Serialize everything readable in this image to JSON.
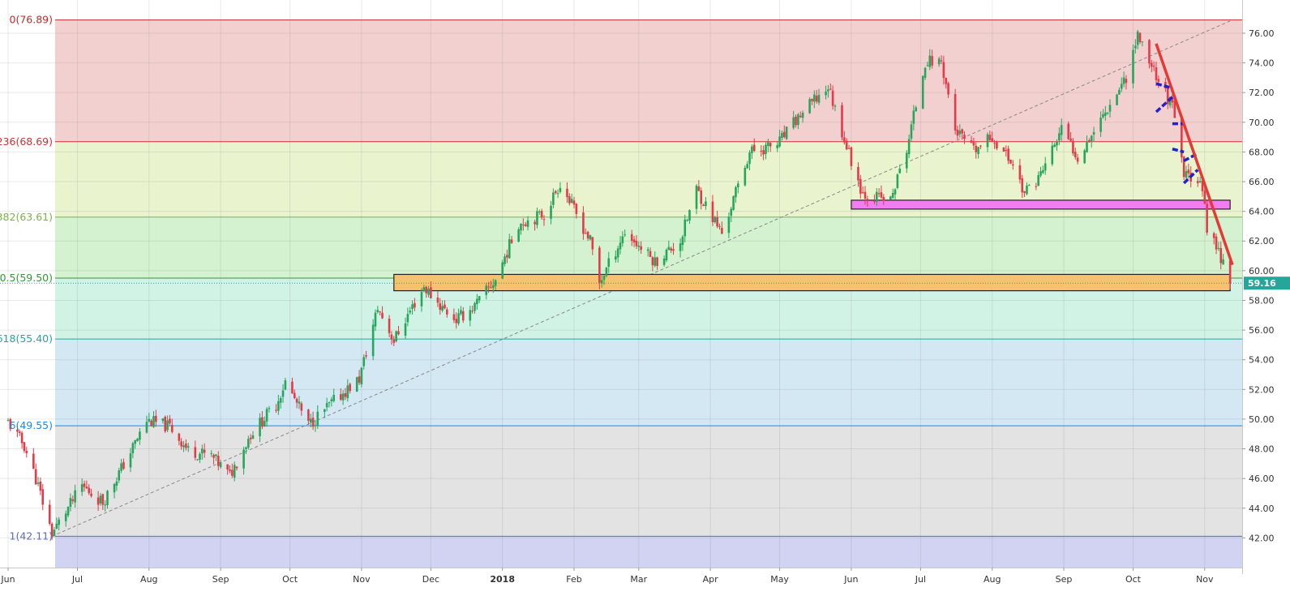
{
  "chart_data": {
    "type": "candlestick",
    "x_range": [
      "2017-06-01",
      "2018-11-13"
    ],
    "ylim": [
      40.0,
      77.8
    ],
    "y_ticks": [
      "42.00",
      "44.00",
      "46.00",
      "48.00",
      "50.00",
      "52.00",
      "54.00",
      "56.00",
      "58.00",
      "60.00",
      "62.00",
      "64.00",
      "66.00",
      "68.00",
      "70.00",
      "72.00",
      "74.00",
      "76.00"
    ],
    "x_ticks": [
      {
        "label": "Jun",
        "date": "2017-06-01",
        "bold": false
      },
      {
        "label": "Jul",
        "date": "2017-07-01",
        "bold": false
      },
      {
        "label": "Aug",
        "date": "2017-08-01",
        "bold": false
      },
      {
        "label": "Sep",
        "date": "2017-09-01",
        "bold": false
      },
      {
        "label": "Oct",
        "date": "2017-10-01",
        "bold": false
      },
      {
        "label": "Nov",
        "date": "2017-11-01",
        "bold": false
      },
      {
        "label": "Dec",
        "date": "2017-12-01",
        "bold": false
      },
      {
        "label": "2018",
        "date": "2018-01-01",
        "bold": true
      },
      {
        "label": "Feb",
        "date": "2018-02-01",
        "bold": false
      },
      {
        "label": "Mar",
        "date": "2018-03-01",
        "bold": false
      },
      {
        "label": "Apr",
        "date": "2018-04-01",
        "bold": false
      },
      {
        "label": "May",
        "date": "2018-05-01",
        "bold": false
      },
      {
        "label": "Jun",
        "date": "2018-06-01",
        "bold": false
      },
      {
        "label": "Jul",
        "date": "2018-07-01",
        "bold": false
      },
      {
        "label": "Aug",
        "date": "2018-08-01",
        "bold": false
      },
      {
        "label": "Sep",
        "date": "2018-09-01",
        "bold": false
      },
      {
        "label": "Oct",
        "date": "2018-10-01",
        "bold": false
      },
      {
        "label": "Nov",
        "date": "2018-11-01",
        "bold": false
      }
    ],
    "fib_levels": [
      {
        "label": "0(76.89)",
        "value": 76.89,
        "color": "#c62828",
        "fill": "#f3d0d0"
      },
      {
        "label": "236(68.69)",
        "value": 68.69,
        "color": "#d32f2f",
        "fill": "#e9f4cf"
      },
      {
        "label": "382(63.61)",
        "value": 63.61,
        "color": "#7cb342",
        "fill": "#d4f2cf"
      },
      {
        "label": "0.5(59.50)",
        "value": 59.5,
        "color": "#2e9e2e",
        "fill": "#d1f3e6"
      },
      {
        "label": "618(55.40)",
        "value": 55.4,
        "color": "#26a69a",
        "fill": "#d3e8f2"
      },
      {
        "label": "6(49.55)",
        "value": 49.55,
        "color": "#1e88e5",
        "fill": "#e3e3e3"
      },
      {
        "label": "1(42.11)",
        "value": 42.11,
        "color": "#5c6bc0",
        "fill": "#d2d2f2"
      }
    ],
    "trendline_fib": {
      "from": {
        "date": "2017-06-20",
        "price": 42.11
      },
      "to": {
        "date": "2018-11-13",
        "price": 76.89
      }
    },
    "resistance_line": {
      "from": {
        "date": "2018-10-11",
        "price": 75.3
      },
      "to": {
        "date": "2018-11-13",
        "price": 60.4
      },
      "color": "#e53935"
    },
    "zones": [
      {
        "name": "orange-support-zone",
        "from": "2017-11-15",
        "to": "2018-11-12",
        "low": 58.65,
        "high": 59.75,
        "fill": "#f6c26b",
        "stroke": "#222222"
      },
      {
        "name": "magenta-zone",
        "from": "2018-06-01",
        "to": "2018-11-12",
        "low": 64.15,
        "high": 64.75,
        "fill": "#f07ef0",
        "stroke": "#222222"
      }
    ],
    "price_tag": {
      "label": "59.16",
      "value": 59.16,
      "color": "#26a69a"
    },
    "up_color": "#26a65b",
    "down_color": "#e53a48",
    "path": [
      [
        "2017-06-01",
        49.8
      ],
      [
        "2017-06-08",
        48.2
      ],
      [
        "2017-06-13",
        46.0
      ],
      [
        "2017-06-20",
        42.3
      ],
      [
        "2017-07-03",
        45.5
      ],
      [
        "2017-07-12",
        44.4
      ],
      [
        "2017-07-24",
        47.8
      ],
      [
        "2017-07-31",
        49.9
      ],
      [
        "2017-08-10",
        49.5
      ],
      [
        "2017-08-18",
        47.9
      ],
      [
        "2017-08-28",
        47.5
      ],
      [
        "2017-09-05",
        46.2
      ],
      [
        "2017-09-14",
        49.0
      ],
      [
        "2017-09-25",
        51.0
      ],
      [
        "2017-09-29",
        52.5
      ],
      [
        "2017-10-09",
        49.6
      ],
      [
        "2017-10-20",
        51.2
      ],
      [
        "2017-10-31",
        52.7
      ],
      [
        "2017-11-08",
        57.5
      ],
      [
        "2017-11-15",
        55.3
      ],
      [
        "2017-11-22",
        57.3
      ],
      [
        "2017-11-28",
        58.9
      ],
      [
        "2017-12-06",
        57.5
      ],
      [
        "2017-12-12",
        56.7
      ],
      [
        "2017-12-20",
        57.6
      ],
      [
        "2017-12-29",
        59.4
      ],
      [
        "2018-01-08",
        63.2
      ],
      [
        "2018-01-19",
        63.8
      ],
      [
        "2018-01-26",
        65.9
      ],
      [
        "2018-02-08",
        62.0
      ],
      [
        "2018-02-12",
        59.2
      ],
      [
        "2018-02-23",
        62.6
      ],
      [
        "2018-03-08",
        60.6
      ],
      [
        "2018-03-19",
        62.0
      ],
      [
        "2018-03-26",
        65.5
      ],
      [
        "2018-04-06",
        62.5
      ],
      [
        "2018-04-18",
        68.0
      ],
      [
        "2018-04-30",
        68.5
      ],
      [
        "2018-05-10",
        70.5
      ],
      [
        "2018-05-22",
        72.4
      ],
      [
        "2018-06-01",
        67.4
      ],
      [
        "2018-06-06",
        65.2
      ],
      [
        "2018-06-18",
        64.7
      ],
      [
        "2018-06-25",
        68.2
      ],
      [
        "2018-07-03",
        74.1
      ],
      [
        "2018-07-10",
        74.1
      ],
      [
        "2018-07-16",
        69.5
      ],
      [
        "2018-07-24",
        68.0
      ],
      [
        "2018-08-01",
        69.0
      ],
      [
        "2018-08-10",
        67.2
      ],
      [
        "2018-08-15",
        65.2
      ],
      [
        "2018-08-22",
        66.5
      ],
      [
        "2018-08-31",
        69.5
      ],
      [
        "2018-09-07",
        67.7
      ],
      [
        "2018-09-18",
        70.5
      ],
      [
        "2018-09-28",
        73.1
      ],
      [
        "2018-10-03",
        75.9
      ],
      [
        "2018-10-11",
        73.2
      ],
      [
        "2018-10-18",
        71.0
      ],
      [
        "2018-10-23",
        66.4
      ],
      [
        "2018-10-30",
        66.3
      ],
      [
        "2018-11-02",
        63.0
      ],
      [
        "2018-11-09",
        60.6
      ],
      [
        "2018-11-12",
        59.16
      ]
    ]
  }
}
